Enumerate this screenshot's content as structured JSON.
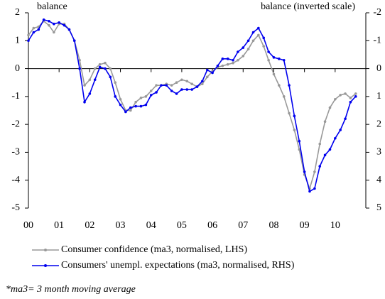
{
  "chart_data": {
    "type": "line",
    "y_label": "balance",
    "y2_label": "balance (inverted scale)",
    "note": "*ma3= 3 month moving average",
    "x": [
      0,
      0.17,
      0.33,
      0.5,
      0.67,
      0.83,
      1,
      1.17,
      1.33,
      1.5,
      1.67,
      1.83,
      2,
      2.17,
      2.33,
      2.5,
      2.67,
      2.83,
      3,
      3.17,
      3.33,
      3.5,
      3.67,
      3.83,
      4,
      4.17,
      4.33,
      4.5,
      4.67,
      4.83,
      5,
      5.17,
      5.33,
      5.5,
      5.67,
      5.83,
      6,
      6.17,
      6.33,
      6.5,
      6.67,
      6.83,
      7,
      7.17,
      7.33,
      7.5,
      7.67,
      7.83,
      8,
      8.17,
      8.33,
      8.5,
      8.67,
      8.83,
      9,
      9.17,
      9.33,
      9.5,
      9.67,
      9.83,
      10,
      10.17,
      10.33,
      10.5,
      10.67
    ],
    "series": [
      {
        "name": "Consumer confidence (ma3, normalised, LHS)",
        "color": "#999999",
        "axis": "y",
        "values": [
          1.2,
          1.45,
          1.5,
          1.7,
          1.55,
          1.3,
          1.6,
          1.6,
          1.4,
          1.0,
          0.3,
          -0.6,
          -0.4,
          0.0,
          0.15,
          0.2,
          0.0,
          -0.5,
          -1.1,
          -1.5,
          -1.5,
          -1.2,
          -1.05,
          -1.0,
          -0.8,
          -0.6,
          -0.6,
          -0.55,
          -0.6,
          -0.5,
          -0.4,
          -0.45,
          -0.55,
          -0.65,
          -0.55,
          -0.3,
          -0.1,
          0.05,
          0.1,
          0.15,
          0.2,
          0.3,
          0.45,
          0.7,
          1.0,
          1.2,
          0.8,
          0.3,
          -0.2,
          -0.6,
          -1.0,
          -1.6,
          -2.2,
          -2.9,
          -3.8,
          -4.3,
          -3.7,
          -2.7,
          -1.9,
          -1.4,
          -1.1,
          -0.95,
          -0.9,
          -1.05,
          -0.9
        ]
      },
      {
        "name": "Consumers' unempl. expectations (ma3, normalised, RHS)",
        "color": "#0000ee",
        "axis": "y2",
        "values": [
          -1,
          -1.3,
          -1.4,
          -1.75,
          -1.7,
          -1.6,
          -1.65,
          -1.55,
          -1.4,
          -1,
          0,
          1.2,
          0.9,
          0.4,
          -0.05,
          0,
          0.3,
          1,
          1.3,
          1.55,
          1.4,
          1.35,
          1.35,
          1.3,
          0.95,
          0.85,
          0.6,
          0.6,
          0.8,
          0.9,
          0.75,
          0.75,
          0.75,
          0.65,
          0.45,
          0.05,
          0.15,
          -0.1,
          -0.35,
          -0.35,
          -0.3,
          -0.6,
          -0.75,
          -1,
          -1.3,
          -1.45,
          -1.1,
          -0.6,
          -0.4,
          -0.35,
          -0.3,
          0.6,
          1.7,
          2.6,
          3.7,
          4.4,
          4.3,
          3.5,
          3.1,
          2.9,
          2.5,
          2.2,
          1.8,
          1.2,
          1.0
        ]
      }
    ],
    "xlim": [
      0,
      11
    ],
    "xticks": [
      {
        "value": 0,
        "label": "00"
      },
      {
        "value": 1,
        "label": "01"
      },
      {
        "value": 2,
        "label": "02"
      },
      {
        "value": 3,
        "label": "03"
      },
      {
        "value": 4,
        "label": "04"
      },
      {
        "value": 5,
        "label": "05"
      },
      {
        "value": 6,
        "label": "06"
      },
      {
        "value": 7,
        "label": "07"
      },
      {
        "value": 8,
        "label": "08"
      },
      {
        "value": 9,
        "label": "09"
      },
      10
    ],
    "ylim": [
      -5,
      2
    ],
    "yticks": [
      -5,
      -4,
      -3,
      -2,
      -1,
      0,
      1,
      2
    ],
    "y2lim": [
      5,
      -2
    ],
    "y2ticks": [
      5,
      4,
      3,
      2,
      1,
      0,
      -1,
      -2
    ]
  }
}
